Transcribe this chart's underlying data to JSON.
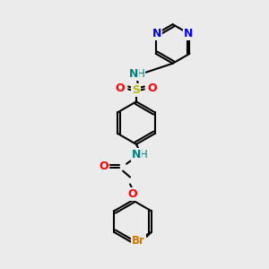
{
  "background_color": "#ebebeb",
  "bond_color": "#000000",
  "atom_colors": {
    "N": "#0000ff",
    "O": "#ff0000",
    "S": "#bbbb00",
    "Br": "#cc7700",
    "NH": "#008080",
    "C": "#000000"
  },
  "figsize": [
    3.0,
    3.0
  ],
  "dpi": 100,
  "lw": 1.5,
  "fontsize": 8.5
}
